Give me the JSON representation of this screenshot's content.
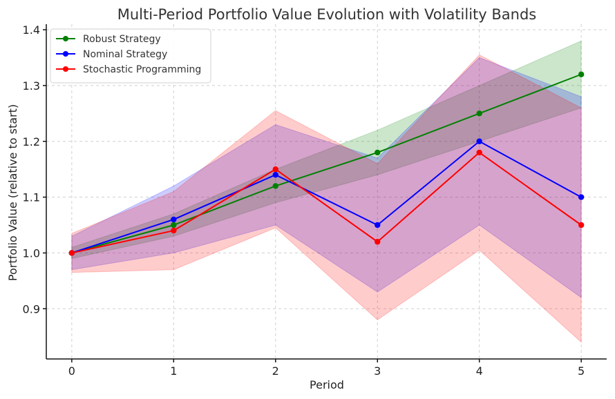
{
  "chart_data": {
    "type": "line",
    "title": "Multi-Period Portfolio Value Evolution with Volatility Bands",
    "xlabel": "Period",
    "ylabel": "Portfolio Value (relative to start)",
    "x": [
      0,
      1,
      2,
      3,
      4,
      5
    ],
    "xlim": [
      -0.25,
      5.25
    ],
    "ylim": [
      0.81,
      1.41
    ],
    "x_ticks": [
      0,
      1,
      2,
      3,
      4,
      5
    ],
    "y_ticks": [
      0.9,
      1.0,
      1.1,
      1.2,
      1.3,
      1.4
    ],
    "grid": true,
    "legend_position": "top-left",
    "series": [
      {
        "name": "Robust Strategy",
        "color": "#008000",
        "values": [
          1.0,
          1.05,
          1.12,
          1.18,
          1.25,
          1.32
        ],
        "band_lower": [
          0.99,
          1.03,
          1.09,
          1.14,
          1.2,
          1.26
        ],
        "band_upper": [
          1.01,
          1.07,
          1.15,
          1.22,
          1.3,
          1.38
        ]
      },
      {
        "name": "Nominal Strategy",
        "color": "#0000ff",
        "values": [
          1.0,
          1.06,
          1.14,
          1.05,
          1.2,
          1.1
        ],
        "band_lower": [
          0.97,
          1.0,
          1.05,
          0.93,
          1.05,
          0.92
        ],
        "band_upper": [
          1.03,
          1.12,
          1.23,
          1.17,
          1.35,
          1.28
        ]
      },
      {
        "name": "Stochastic Programming",
        "color": "#ff0000",
        "values": [
          1.0,
          1.04,
          1.15,
          1.02,
          1.18,
          1.05
        ],
        "band_lower": [
          0.965,
          0.97,
          1.045,
          0.88,
          1.005,
          0.84
        ],
        "band_upper": [
          1.035,
          1.11,
          1.255,
          1.16,
          1.355,
          1.26
        ]
      }
    ]
  }
}
